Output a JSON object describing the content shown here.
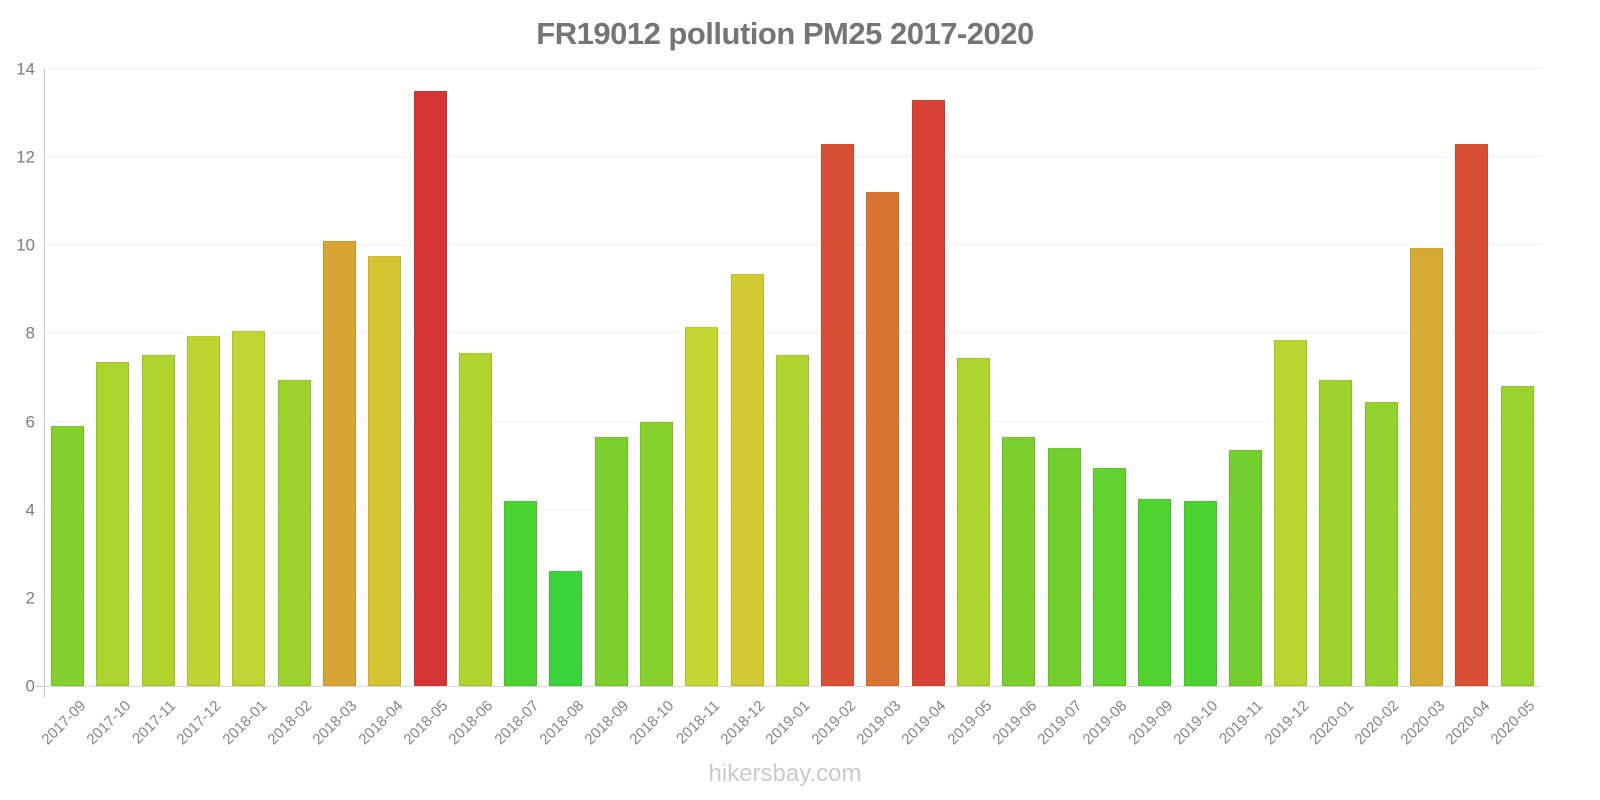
{
  "page": {
    "title": "FR19012 pollution PM25 2017-2020",
    "footer": "hikersbay.com",
    "background": "#ffffff",
    "title_color": "#757575",
    "footer_color": "#cbcbcb",
    "axis_color": "#c3c3c3",
    "baseline_color": "#dadada",
    "grid_color": "#f4f4f4",
    "tick_label_color": "#7d7d7d",
    "x_label_color": "#848484"
  },
  "chart_data": {
    "type": "bar",
    "title": "FR19012 pollution PM25 2017-2020",
    "xlabel": "",
    "ylabel": "",
    "ylim": [
      0,
      14
    ],
    "yticks": [
      0,
      2,
      4,
      6,
      8,
      10,
      12,
      14
    ],
    "grid": true,
    "legend": false,
    "x_tick_rotation_deg": 45,
    "categories": [
      "2017-09",
      "2017-10",
      "2017-11",
      "2017-12",
      "2018-01",
      "2018-02",
      "2018-03",
      "2018-04",
      "2018-05",
      "2018-06",
      "2018-07",
      "2018-08",
      "2018-09",
      "2018-10",
      "2018-11",
      "2018-12",
      "2019-01",
      "2019-02",
      "2019-03",
      "2019-04",
      "2019-05",
      "2019-06",
      "2019-07",
      "2019-08",
      "2019-09",
      "2019-10",
      "2019-11",
      "2019-12",
      "2020-01",
      "2020-02",
      "2020-03",
      "2020-04",
      "2020-05"
    ],
    "values": [
      5.9,
      7.35,
      7.5,
      7.95,
      8.05,
      6.95,
      10.1,
      9.75,
      13.5,
      7.55,
      4.2,
      2.6,
      5.65,
      6.0,
      8.15,
      9.35,
      7.5,
      12.3,
      11.2,
      13.3,
      7.45,
      5.65,
      5.4,
      4.95,
      4.25,
      4.2,
      5.35,
      7.85,
      6.95,
      6.45,
      9.95,
      12.3,
      6.8
    ],
    "bar_colors": [
      "#83d12e",
      "#abd42e",
      "#b0d42e",
      "#bdd530",
      "#c0d531",
      "#9ed32e",
      "#d9a434",
      "#d6c533",
      "#d63535",
      "#b1d42e",
      "#4dd331",
      "#3ad43c",
      "#7bd02e",
      "#86d12e",
      "#c3d632",
      "#d2ca33",
      "#b0d42e",
      "#d94f35",
      "#d97333",
      "#d84136",
      "#aed42e",
      "#7bd02e",
      "#73d02e",
      "#62d22f",
      "#4ed331",
      "#4dd331",
      "#72d02e",
      "#bad530",
      "#9ed32e",
      "#93d22e",
      "#d8ab34",
      "#d94f35",
      "#9ad32e"
    ],
    "color_scale_note": "green=low, yellow=mid, orange/red=high"
  }
}
